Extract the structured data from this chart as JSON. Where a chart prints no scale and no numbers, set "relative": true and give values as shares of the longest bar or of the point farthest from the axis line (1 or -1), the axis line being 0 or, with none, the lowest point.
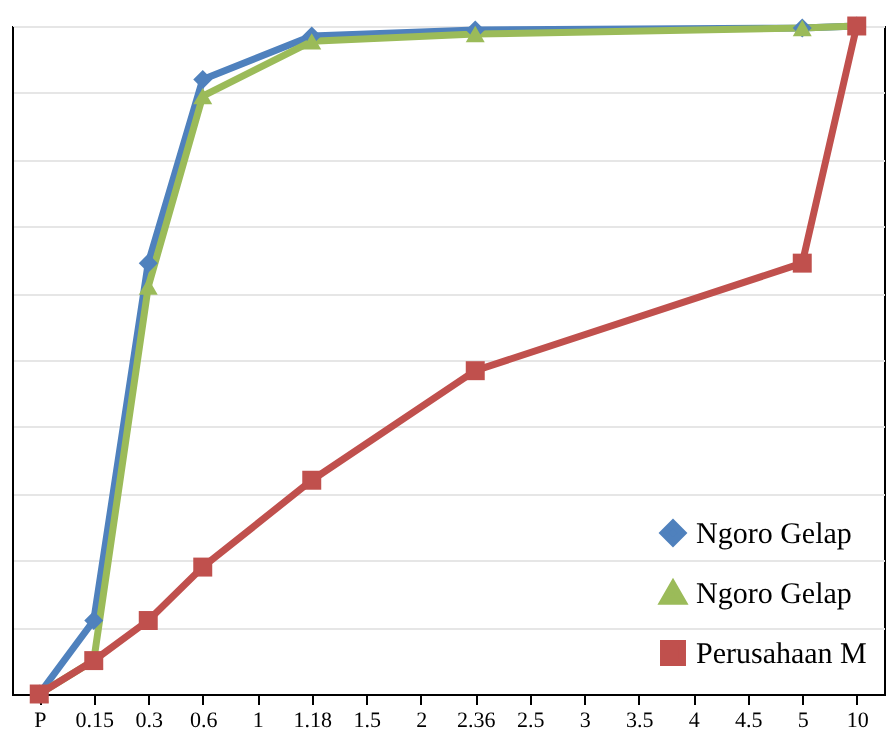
{
  "chart_data": {
    "type": "line",
    "relative": true,
    "grid": "y",
    "legend": "bottom right",
    "line_style": "solid",
    "categories": [
      "P",
      "0.15",
      "0.3",
      "0.6",
      "1",
      "1.18",
      "1.5",
      "2",
      "2.36",
      "2.5",
      "3",
      "3.5",
      "4",
      "4.5",
      "5",
      "10"
    ],
    "series": [
      {
        "name": "Ngoro Gelap",
        "color": "#4f81bd",
        "marker": "diamond",
        "values": [
          0,
          0.11,
          0.645,
          0.92,
          null,
          0.985,
          null,
          null,
          0.994,
          null,
          null,
          null,
          null,
          null,
          0.997,
          1
        ]
      },
      {
        "name": "Ngoro Gelap",
        "color": "#9bbb59",
        "marker": "triangle",
        "values": [
          0,
          0.05,
          0.61,
          0.895,
          null,
          0.977,
          null,
          null,
          0.988,
          null,
          null,
          null,
          null,
          null,
          0.997,
          1
        ]
      },
      {
        "name": "Perusahaan M",
        "color": "#c0504d",
        "marker": "square",
        "values": [
          0,
          0.05,
          0.11,
          0.19,
          null,
          0.32,
          null,
          null,
          0.484,
          null,
          null,
          null,
          null,
          null,
          0.645,
          1
        ]
      }
    ]
  }
}
